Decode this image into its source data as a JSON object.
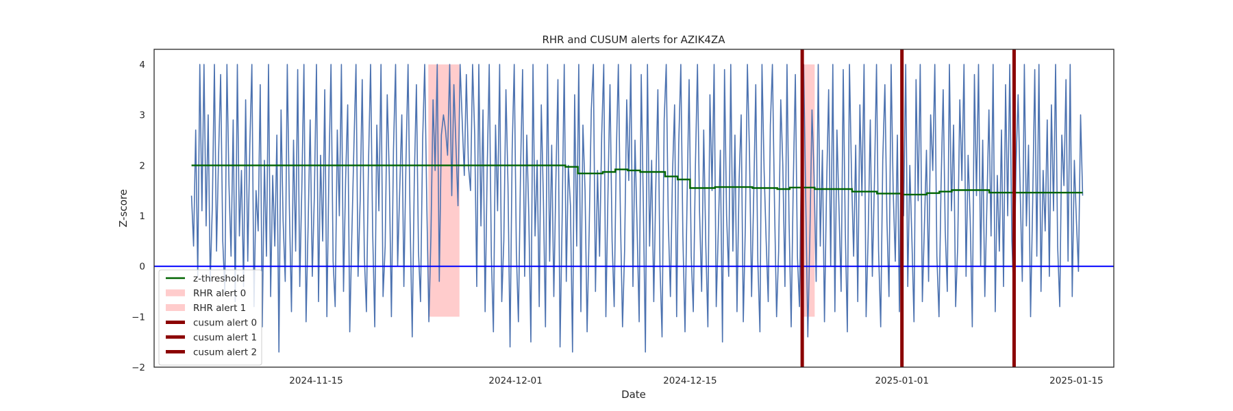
{
  "chart_data": {
    "type": "line",
    "title": "RHR and CUSUM alerts for AZIK4ZA",
    "xlabel": "Date",
    "ylabel": "Z-score",
    "xlim": [
      "2024-11-02",
      "2025-01-18"
    ],
    "ylim": [
      -2,
      4.3
    ],
    "x_ticks": [
      "2024-11-15",
      "2024-12-01",
      "2024-12-15",
      "2025-01-01",
      "2025-01-15"
    ],
    "y_ticks": [
      -2,
      -1,
      0,
      1,
      2,
      3,
      4
    ],
    "grid": false,
    "legend_position": "lower-left",
    "series": [
      {
        "kind": "z-score",
        "color": "#4c72b0",
        "x_start": "2024-11-05",
        "x_end": "2025-01-15T12:00",
        "clip_range": [
          -1.8,
          4
        ],
        "values": [
          1.4,
          0.4,
          2.7,
          -0.2,
          4,
          1.1,
          4,
          0.8,
          3.0,
          -0.3,
          1.2,
          4,
          0.3,
          2.2,
          3.8,
          0.5,
          -0.5,
          4,
          1.6,
          0.2,
          2.9,
          -0.7,
          4,
          0.6,
          1.9,
          -0.4,
          3.3,
          0.1,
          2.4,
          4,
          -0.8,
          1.5,
          0.7,
          3.6,
          -1.2,
          2.1,
          0.2,
          4,
          -0.6,
          1.8,
          0.4,
          2.6,
          -1.7,
          3.1,
          0.9,
          -0.3,
          4,
          1.2,
          -0.9,
          2.5,
          0.3,
          3.9,
          -0.4,
          1.6,
          4,
          -1.1,
          0.8,
          2.9,
          -0.2,
          1.4,
          4,
          -0.7,
          2.2,
          0.5,
          3.5,
          -1.0,
          1.9,
          4,
          0.1,
          -0.8,
          2.7,
          1.0,
          4,
          -0.5,
          1.7,
          3.2,
          -1.3,
          0.6,
          2.4,
          4,
          -0.2,
          1.3,
          3.7,
          0.2,
          -0.9,
          2.0,
          4,
          0.7,
          -1.2,
          2.8,
          1.1,
          4,
          -0.6,
          0.4,
          3.4,
          1.8,
          -1.0,
          2.3,
          4,
          0.0,
          1.5,
          3.0,
          -0.4,
          2.1,
          4,
          0.9,
          -1.4,
          1.7,
          3.6,
          0.3,
          -0.7,
          2.5,
          4,
          1.2,
          -1.1,
          0.6,
          3.3,
          1.9,
          4,
          -0.3,
          2.6,
          3.0,
          2.7,
          2.2,
          4,
          1.4,
          3.6,
          2.4,
          1.2,
          4,
          2.9,
          1.8,
          3.8,
          2.0,
          1.5,
          4,
          2.6,
          -0.4,
          4,
          0.8,
          3.1,
          -0.9,
          1.9,
          4,
          0.2,
          -1.3,
          2.8,
          1.1,
          4,
          -0.7,
          0.5,
          3.5,
          1.6,
          -1.6,
          2.3,
          4,
          0.3,
          -1.1,
          1.8,
          3.9,
          -0.2,
          2.6,
          1.0,
          -1.5,
          4,
          0.6,
          2.1,
          -0.8,
          3.2,
          1.3,
          -1.2,
          4,
          0.1,
          2.4,
          -0.6,
          1.7,
          3.7,
          -1.6,
          0.9,
          4,
          -0.3,
          2.0,
          1.2,
          -1.7,
          3.4,
          0.4,
          4,
          -0.9,
          2.8,
          1.5,
          -1.3,
          0.7,
          3.1,
          4,
          -0.5,
          1.9,
          0.2,
          2.6,
          4,
          -1.0,
          1.4,
          3.6,
          0.5,
          -0.8,
          2.2,
          4,
          1.0,
          -1.2,
          0.3,
          3.3,
          1.7,
          4,
          -0.4,
          2.5,
          0.8,
          -1.1,
          3.8,
          1.2,
          -1.7,
          4,
          0.4,
          2.1,
          -0.7,
          1.6,
          3.5,
          0.0,
          -1.4,
          2.9,
          4,
          0.9,
          -0.6,
          1.8,
          3.2,
          -1.0,
          2.4,
          4,
          0.6,
          -1.3,
          1.3,
          3.7,
          0.2,
          -0.9,
          2.0,
          4,
          1.1,
          -0.5,
          2.7,
          0.4,
          -1.2,
          3.4,
          1.5,
          4,
          -0.8,
          0.7,
          2.3,
          -1.5,
          3.9,
          1.0,
          -0.2,
          4,
          0.3,
          2.6,
          -0.9,
          1.7,
          3.0,
          -1.1,
          0.8,
          4,
          2.2,
          -0.6,
          1.4,
          3.6,
          0.1,
          -1.3,
          4,
          1.9,
          0.5,
          -0.7,
          2.8,
          4,
          1.2,
          -1.0,
          0.3,
          3.3,
          2.0,
          -0.4,
          4,
          0.9,
          -1.2,
          1.6,
          3.8,
          0.2,
          -0.8,
          2.5,
          4,
          1.3,
          -1.4,
          0.6,
          3.1,
          1.8,
          -0.3,
          4,
          0.4,
          2.3,
          -1.1,
          1.5,
          3.5,
          0.0,
          4,
          -0.9,
          2.7,
          1.1,
          -0.5,
          3.9,
          0.7,
          -1.3,
          4,
          1.8,
          0.2,
          2.4,
          -0.7,
          3.2,
          1.4,
          4,
          -1.0,
          0.6,
          2.9,
          -0.2,
          1.7,
          4,
          0.3,
          -1.2,
          2.1,
          3.6,
          0.9,
          -0.6,
          4,
          1.5,
          0.1,
          2.6,
          -0.9,
          3.4,
          1.0,
          4,
          -0.4,
          2.0,
          0.5,
          -1.1,
          3.7,
          1.3,
          4,
          -0.7,
          0.8,
          2.3,
          -0.3,
          3.0,
          1.9,
          4,
          0.2,
          -1.0,
          1.6,
          3.5,
          0.7,
          -0.5,
          4,
          1.1,
          2.8,
          -0.8,
          0.4,
          3.3,
          1.7,
          4,
          -0.2,
          2.2,
          0.9,
          -1.2,
          3.8,
          1.4,
          4,
          0.0,
          2.5,
          -0.6,
          1.2,
          3.1,
          0.6,
          4,
          -0.9,
          1.8,
          0.3,
          2.7,
          -0.4,
          3.6,
          1.0,
          4,
          0.5,
          -0.7,
          2.0,
          3.4,
          1.5,
          -0.3,
          4,
          0.8,
          2.4,
          -1.0,
          1.3,
          3.9,
          0.2,
          4,
          -0.5,
          1.9,
          0.7,
          2.9,
          -0.2,
          3.2,
          1.1,
          4,
          0.4,
          -0.8,
          2.6,
          1.6,
          3.7,
          0.1,
          4,
          -0.6,
          2.1,
          0.9,
          -0.1,
          3.0,
          1.4
        ]
      },
      {
        "kind": "threshold",
        "name": "z-threshold",
        "color": "#006400",
        "points": [
          [
            "2024-11-05",
            2.0
          ],
          [
            "2024-12-05",
            2.0
          ],
          [
            "2024-12-05",
            1.97
          ],
          [
            "2024-12-06",
            1.97
          ],
          [
            "2024-12-06",
            1.84
          ],
          [
            "2024-12-08",
            1.84
          ],
          [
            "2024-12-08",
            1.87
          ],
          [
            "2024-12-09",
            1.87
          ],
          [
            "2024-12-09",
            1.92
          ],
          [
            "2024-12-10",
            1.92
          ],
          [
            "2024-12-10",
            1.9
          ],
          [
            "2024-12-11",
            1.9
          ],
          [
            "2024-12-11",
            1.87
          ],
          [
            "2024-12-13",
            1.87
          ],
          [
            "2024-12-13",
            1.78
          ],
          [
            "2024-12-14",
            1.78
          ],
          [
            "2024-12-14",
            1.72
          ],
          [
            "2024-12-15",
            1.72
          ],
          [
            "2024-12-15",
            1.55
          ],
          [
            "2024-12-17",
            1.55
          ],
          [
            "2024-12-17",
            1.57
          ],
          [
            "2024-12-20",
            1.57
          ],
          [
            "2024-12-20",
            1.55
          ],
          [
            "2024-12-22",
            1.55
          ],
          [
            "2024-12-22",
            1.53
          ],
          [
            "2024-12-23",
            1.53
          ],
          [
            "2024-12-23",
            1.56
          ],
          [
            "2024-12-25",
            1.56
          ],
          [
            "2024-12-25",
            1.53
          ],
          [
            "2024-12-28",
            1.53
          ],
          [
            "2024-12-28",
            1.48
          ],
          [
            "2024-12-30",
            1.48
          ],
          [
            "2024-12-30",
            1.44
          ],
          [
            "2025-01-01",
            1.44
          ],
          [
            "2025-01-01",
            1.42
          ],
          [
            "2025-01-03",
            1.42
          ],
          [
            "2025-01-03",
            1.45
          ],
          [
            "2025-01-04",
            1.45
          ],
          [
            "2025-01-04",
            1.48
          ],
          [
            "2025-01-05",
            1.48
          ],
          [
            "2025-01-05",
            1.51
          ],
          [
            "2025-01-08",
            1.51
          ],
          [
            "2025-01-08",
            1.46
          ],
          [
            "2025-01-15T12:00",
            1.46
          ]
        ]
      },
      {
        "kind": "baseline",
        "color": "#0000ff",
        "y": 0
      }
    ],
    "rhr_alerts": [
      {
        "name": "RHR alert 0",
        "start": "2024-11-24",
        "end": "2024-11-26T12:00",
        "ymin": -1,
        "ymax": 4,
        "color": "#ffcccc"
      },
      {
        "name": "RHR alert 1",
        "start": "2024-12-24",
        "end": "2024-12-25",
        "ymin": -1,
        "ymax": 4,
        "color": "#ffcccc"
      }
    ],
    "cusum_alerts": [
      {
        "name": "cusum alert 0",
        "date": "2024-12-24",
        "color": "#8b0000"
      },
      {
        "name": "cusum alert 1",
        "date": "2025-01-01",
        "color": "#8b0000"
      },
      {
        "name": "cusum alert 2",
        "date": "2025-01-10",
        "color": "#8b0000"
      }
    ]
  }
}
